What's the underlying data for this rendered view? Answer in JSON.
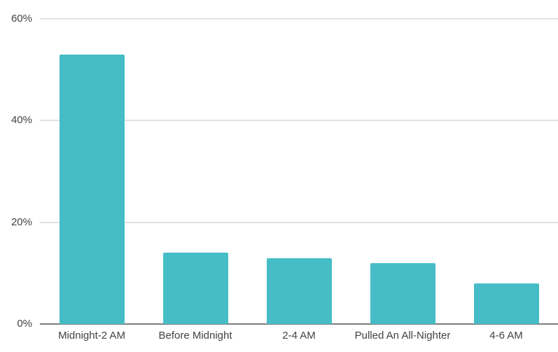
{
  "chart_data": {
    "type": "bar",
    "title": "",
    "xlabel": "",
    "ylabel": "",
    "categories": [
      "Midnight-2 AM",
      "Before Midnight",
      "2-4 AM",
      "Pulled An All-Nighter",
      "4-6 AM"
    ],
    "values": [
      53,
      14,
      13,
      12,
      8
    ],
    "value_unit": "%",
    "ylim": [
      0,
      60
    ],
    "yticks": [
      0,
      20,
      40,
      60
    ],
    "ytick_labels": [
      "0%",
      "20%",
      "40%",
      "60%"
    ],
    "grid": true,
    "legend": "none",
    "colors": {
      "bar": "#46bdc6",
      "gridline": "#e2e2e2",
      "axis_line": "#7d7d7d",
      "label_text": "#424242",
      "background": "#ffffff"
    }
  }
}
